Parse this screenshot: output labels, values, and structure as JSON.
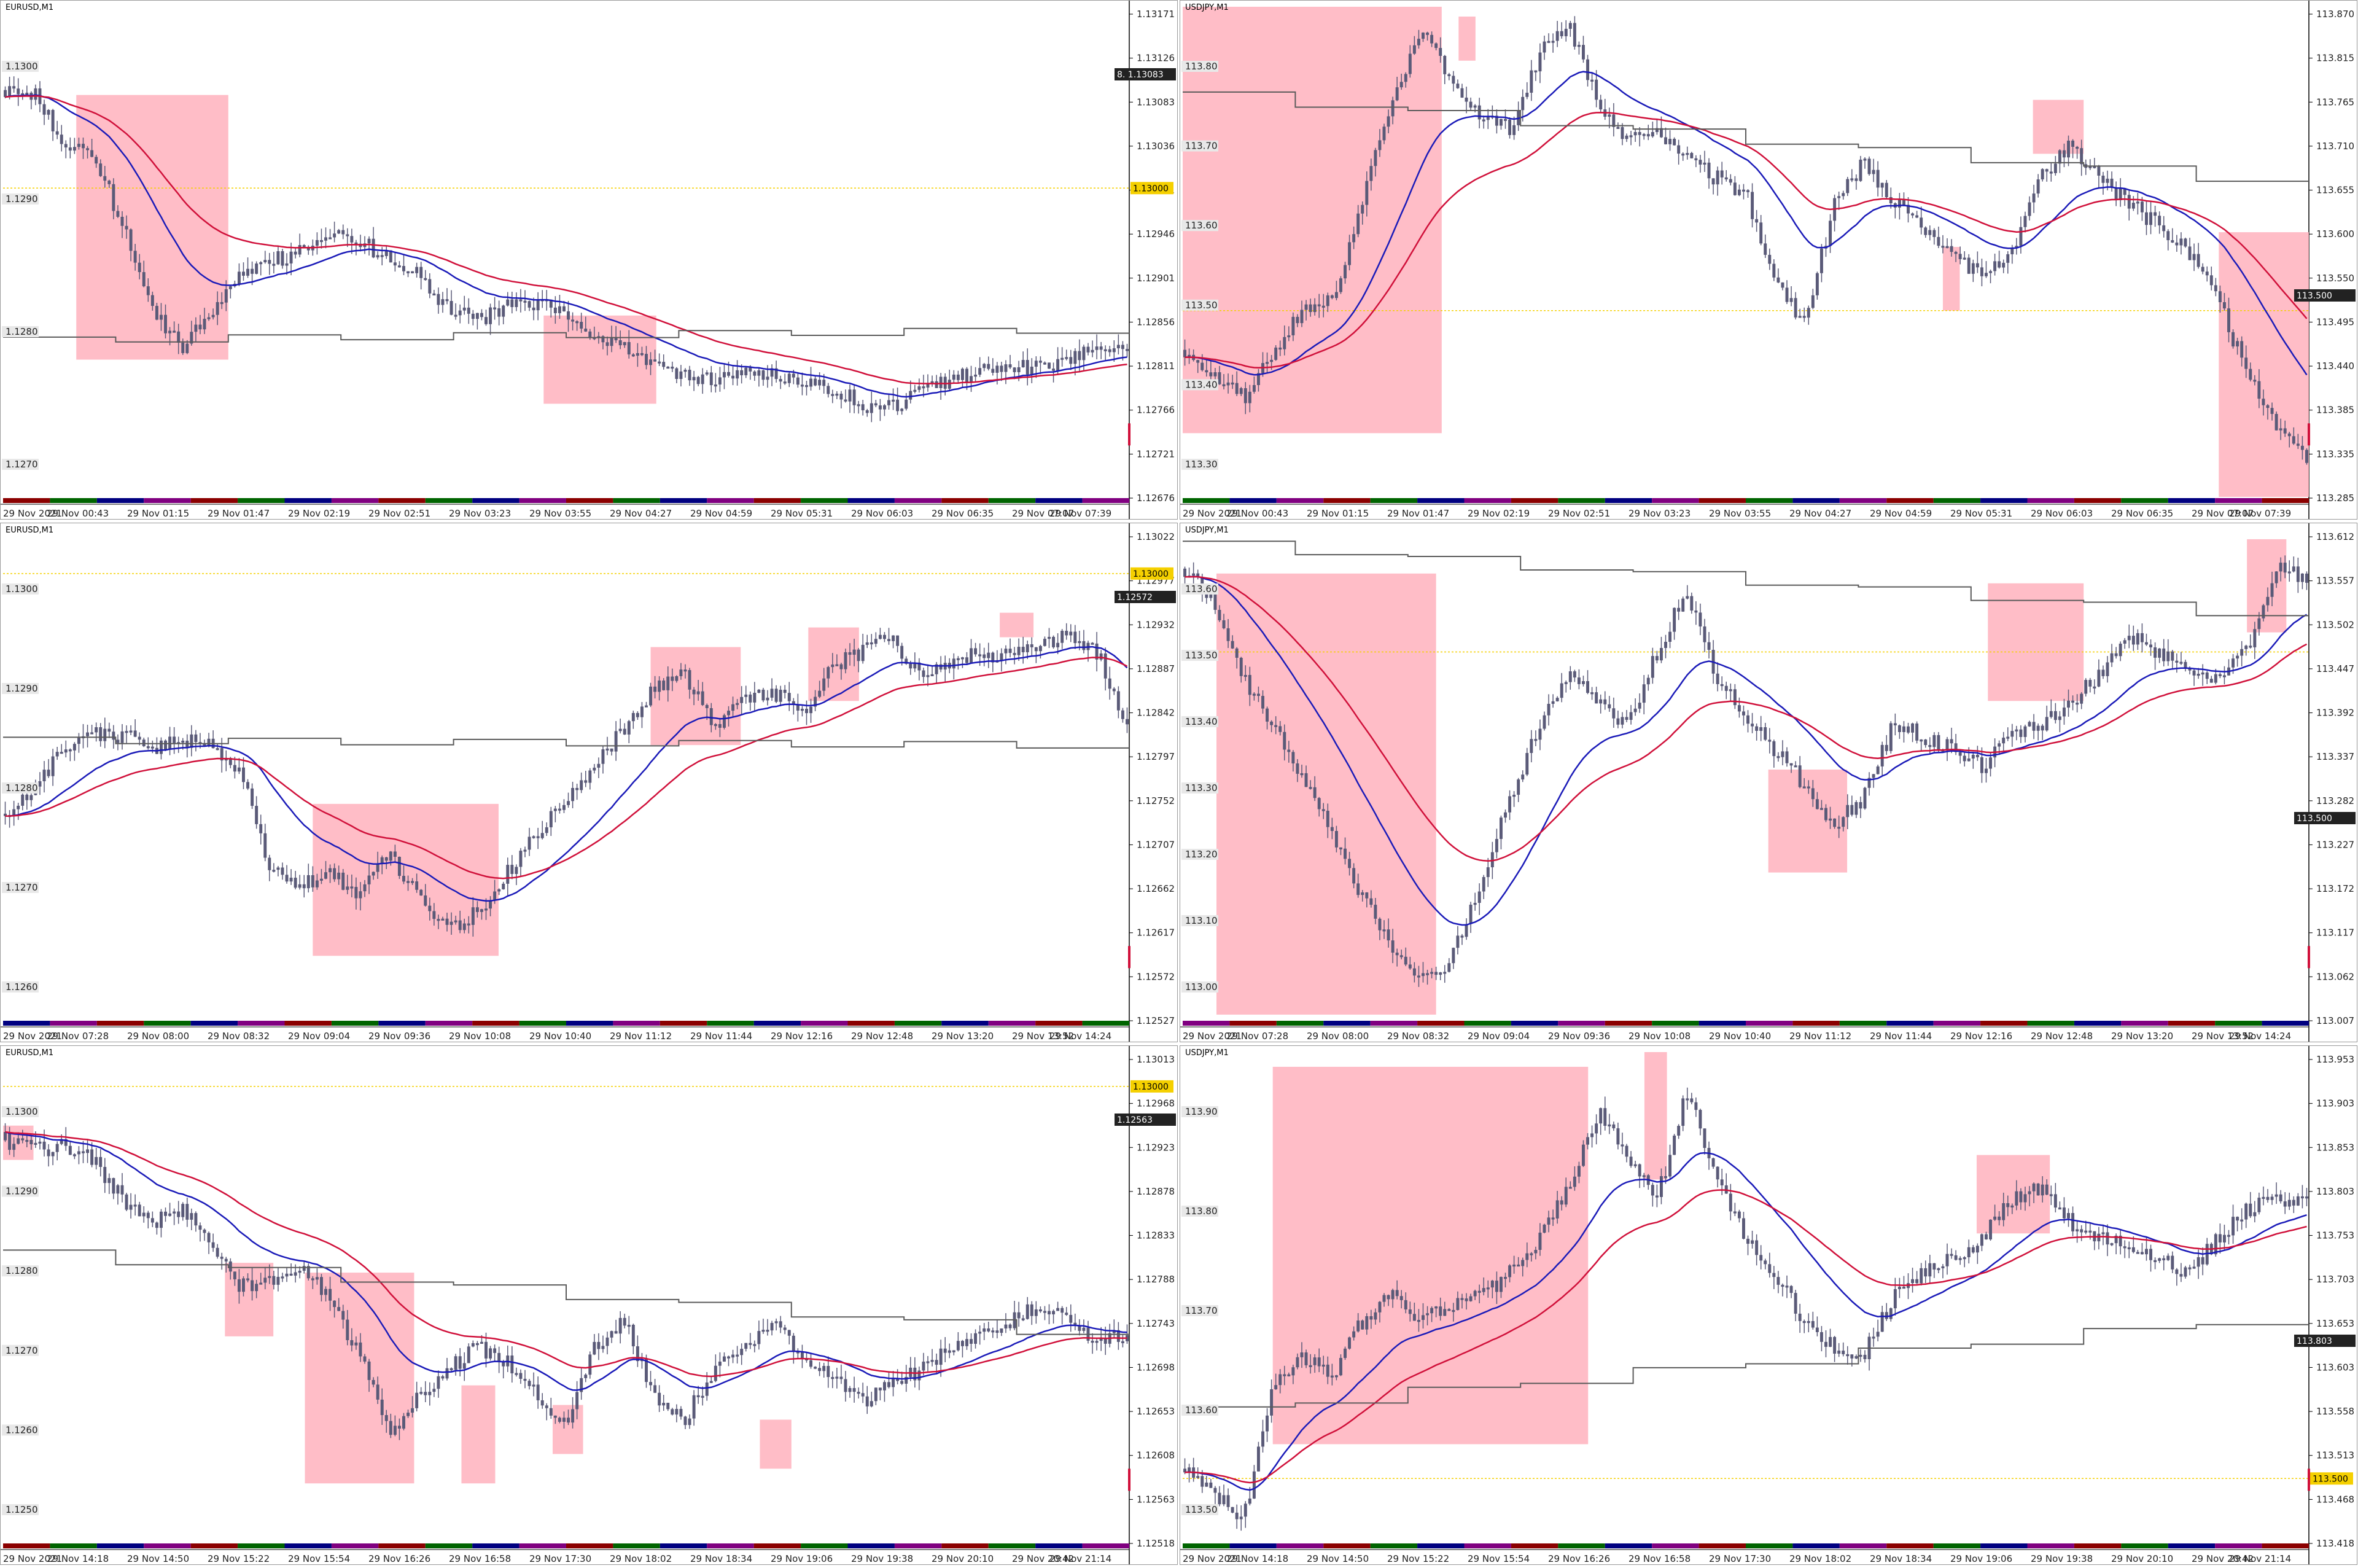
{
  "colors": {
    "ma_fast": "#d0103a",
    "ma_slow": "#1a1ab8",
    "level_line": "#5a5a5a",
    "zone": "#ffb6c1",
    "candle": "#5a5a78",
    "yellow": "#f5d000",
    "session_bars": [
      "#8b0000",
      "#006400",
      "#000080",
      "#800080"
    ]
  },
  "panels": [
    {
      "id": "p1",
      "title": "EURUSD,M1",
      "seed": 11,
      "left_labels": [
        "1.1300",
        "1.1290",
        "1.1280",
        "1.1270"
      ],
      "right_labels": [
        "1.13171",
        "1.13126",
        "1.13083",
        "1.13036",
        "1.12991",
        "1.12946",
        "1.12901",
        "1.12856",
        "1.12811",
        "1.12766",
        "1.12721",
        "1.12676"
      ],
      "time_labels": [
        "29 Nov 2021",
        "29 Nov 00:43",
        "29 Nov 01:15",
        "29 Nov 01:47",
        "29 Nov 02:19",
        "29 Nov 02:51",
        "29 Nov 03:23",
        "29 Nov 03:55",
        "29 Nov 04:27",
        "29 Nov 04:59",
        "29 Nov 05:31",
        "29 Nov 06:03",
        "29 Nov 06:35",
        "29 Nov 07:07",
        "29 Nov 07:39"
      ],
      "price_tag": "1.13083",
      "price_tag_prefix": "8.",
      "yellow_tag": "1.13000",
      "path": [
        0.17,
        0.18,
        0.28,
        0.3,
        0.45,
        0.62,
        0.7,
        0.62,
        0.55,
        0.52,
        0.5,
        0.47,
        0.48,
        0.51,
        0.55,
        0.62,
        0.64,
        0.61,
        0.61,
        0.62,
        0.67,
        0.7,
        0.72,
        0.75,
        0.76,
        0.74,
        0.75,
        0.76,
        0.78,
        0.81,
        0.82,
        0.79,
        0.76,
        0.74,
        0.73,
        0.74,
        0.72,
        0.7,
        0.69
      ],
      "zones": [
        [
          0.065,
          0.2,
          0.18,
          0.72
        ],
        [
          0.48,
          0.58,
          0.63,
          0.81
        ]
      ],
      "yellow_line": 0.37,
      "level": [
        0.68,
        0.66
      ]
    },
    {
      "id": "p2",
      "title": "USDJPY,M1",
      "seed": 23,
      "left_labels": [
        "113.80",
        "113.70",
        "113.60",
        "113.50",
        "113.40",
        "113.30"
      ],
      "right_labels": [
        "113.870",
        "113.815",
        "113.765",
        "113.710",
        "113.655",
        "113.600",
        "113.550",
        "113.495",
        "113.440",
        "113.385",
        "113.335",
        "113.285"
      ],
      "time_labels": [
        "29 Nov 2021",
        "29 Nov 00:43",
        "29 Nov 01:15",
        "29 Nov 01:47",
        "29 Nov 02:19",
        "29 Nov 02:51",
        "29 Nov 03:23",
        "29 Nov 03:55",
        "29 Nov 04:27",
        "29 Nov 04:59",
        "29 Nov 05:31",
        "29 Nov 06:03",
        "29 Nov 06:35",
        "29 Nov 07:07",
        "29 Nov 07:39"
      ],
      "price_tag": "113.500",
      "price_tag_prefix": "",
      "yellow_tag": "",
      "path": [
        0.7,
        0.75,
        0.8,
        0.7,
        0.62,
        0.6,
        0.4,
        0.2,
        0.05,
        0.15,
        0.22,
        0.25,
        0.1,
        0.03,
        0.2,
        0.28,
        0.25,
        0.3,
        0.35,
        0.38,
        0.55,
        0.65,
        0.4,
        0.32,
        0.4,
        0.45,
        0.5,
        0.55,
        0.5,
        0.35,
        0.28,
        0.35,
        0.4,
        0.45,
        0.5,
        0.6,
        0.75,
        0.85,
        0.92
      ],
      "zones": [
        [
          0.0,
          0.23,
          0.0,
          0.87
        ],
        [
          0.245,
          0.26,
          0.02,
          0.11
        ],
        [
          0.675,
          0.69,
          0.49,
          0.62
        ],
        [
          0.755,
          0.8,
          0.19,
          0.3
        ],
        [
          0.92,
          1.0,
          0.46,
          1.0
        ]
      ],
      "yellow_line": 0.62,
      "level": [
        0.18,
        0.35
      ]
    },
    {
      "id": "p3",
      "title": "EURUSD,M1",
      "seed": 37,
      "left_labels": [
        "1.1300",
        "1.1290",
        "1.1280",
        "1.1270",
        "1.1260"
      ],
      "right_labels": [
        "1.13022",
        "1.12977",
        "1.12932",
        "1.12887",
        "1.12842",
        "1.12797",
        "1.12752",
        "1.12707",
        "1.12662",
        "1.12617",
        "1.12572",
        "1.12527"
      ],
      "time_labels": [
        "29 Nov 2021",
        "29 Nov 07:28",
        "29 Nov 08:00",
        "29 Nov 08:32",
        "29 Nov 09:04",
        "29 Nov 09:36",
        "29 Nov 10:08",
        "29 Nov 10:40",
        "29 Nov 11:12",
        "29 Nov 11:44",
        "29 Nov 12:16",
        "29 Nov 12:48",
        "29 Nov 13:20",
        "29 Nov 13:52",
        "29 Nov 14:24"
      ],
      "price_tag": "1.12572",
      "price_tag_prefix": "",
      "yellow_tag": "1.13000",
      "path": [
        0.58,
        0.52,
        0.45,
        0.42,
        0.42,
        0.45,
        0.43,
        0.44,
        0.5,
        0.7,
        0.73,
        0.7,
        0.75,
        0.66,
        0.75,
        0.82,
        0.78,
        0.7,
        0.62,
        0.55,
        0.48,
        0.4,
        0.32,
        0.3,
        0.4,
        0.35,
        0.33,
        0.38,
        0.28,
        0.25,
        0.22,
        0.3,
        0.28,
        0.25,
        0.26,
        0.24,
        0.22,
        0.25,
        0.4
      ],
      "zones": [
        [
          0.275,
          0.44,
          0.56,
          0.87
        ],
        [
          0.575,
          0.655,
          0.24,
          0.44
        ],
        [
          0.715,
          0.76,
          0.2,
          0.35
        ],
        [
          0.885,
          0.915,
          0.17,
          0.22
        ]
      ],
      "yellow_line": 0.09,
      "level": [
        0.43,
        0.44
      ]
    },
    {
      "id": "p4",
      "title": "USDJPY,M1",
      "seed": 41,
      "left_labels": [
        "113.60",
        "113.50",
        "113.40",
        "113.30",
        "113.20",
        "113.10",
        "113.00"
      ],
      "right_labels": [
        "113.612",
        "113.557",
        "113.502",
        "113.447",
        "113.392",
        "113.337",
        "113.282",
        "113.227",
        "113.172",
        "113.117",
        "113.062",
        "113.007"
      ],
      "time_labels": [
        "29 Nov 2021",
        "29 Nov 07:28",
        "29 Nov 08:00",
        "29 Nov 08:32",
        "29 Nov 09:04",
        "29 Nov 09:36",
        "29 Nov 10:08",
        "29 Nov 10:40",
        "29 Nov 11:12",
        "29 Nov 11:44",
        "29 Nov 12:16",
        "29 Nov 12:48",
        "29 Nov 13:20",
        "29 Nov 13:52",
        "29 Nov 14:24"
      ],
      "price_tag": "113.500",
      "price_tag_prefix": "",
      "yellow_tag": "",
      "path": [
        0.08,
        0.15,
        0.3,
        0.4,
        0.5,
        0.62,
        0.75,
        0.85,
        0.92,
        0.88,
        0.72,
        0.55,
        0.4,
        0.3,
        0.35,
        0.4,
        0.25,
        0.12,
        0.3,
        0.38,
        0.45,
        0.52,
        0.6,
        0.55,
        0.4,
        0.42,
        0.45,
        0.48,
        0.42,
        0.4,
        0.35,
        0.3,
        0.22,
        0.25,
        0.28,
        0.3,
        0.25,
        0.08,
        0.1
      ],
      "zones": [
        [
          0.03,
          0.225,
          0.09,
          0.99
        ],
        [
          0.52,
          0.59,
          0.49,
          0.7
        ],
        [
          0.715,
          0.8,
          0.11,
          0.35
        ],
        [
          0.945,
          0.98,
          0.02,
          0.21
        ]
      ],
      "yellow_line": 0.25,
      "level": [
        0.03,
        0.17
      ]
    },
    {
      "id": "p5",
      "title": "EURUSD,M1",
      "seed": 53,
      "left_labels": [
        "1.1300",
        "1.1290",
        "1.1280",
        "1.1270",
        "1.1260",
        "1.1250"
      ],
      "right_labels": [
        "1.13013",
        "1.12968",
        "1.12923",
        "1.12878",
        "1.12833",
        "1.12788",
        "1.12743",
        "1.12698",
        "1.12653",
        "1.12608",
        "1.12563",
        "1.12518"
      ],
      "time_labels": [
        "29 Nov 2021",
        "29 Nov 14:18",
        "29 Nov 14:50",
        "29 Nov 15:22",
        "29 Nov 15:54",
        "29 Nov 16:26",
        "29 Nov 16:58",
        "29 Nov 17:30",
        "29 Nov 18:02",
        "29 Nov 18:34",
        "29 Nov 19:06",
        "29 Nov 19:38",
        "29 Nov 20:10",
        "29 Nov 20:42",
        "29 Nov 21:14"
      ],
      "price_tag": "1.12563",
      "price_tag_prefix": "",
      "yellow_tag": "1.13000",
      "path": [
        0.18,
        0.2,
        0.19,
        0.22,
        0.3,
        0.35,
        0.32,
        0.4,
        0.48,
        0.46,
        0.44,
        0.5,
        0.62,
        0.78,
        0.7,
        0.65,
        0.6,
        0.63,
        0.7,
        0.75,
        0.6,
        0.55,
        0.7,
        0.75,
        0.65,
        0.6,
        0.55,
        0.62,
        0.65,
        0.72,
        0.68,
        0.65,
        0.6,
        0.58,
        0.55,
        0.52,
        0.55,
        0.6,
        0.57
      ],
      "zones": [
        [
          0.0,
          0.027,
          0.15,
          0.22
        ],
        [
          0.197,
          0.24,
          0.43,
          0.58
        ],
        [
          0.268,
          0.365,
          0.45,
          0.88
        ],
        [
          0.407,
          0.437,
          0.68,
          0.88
        ],
        [
          0.488,
          0.515,
          0.72,
          0.82
        ],
        [
          0.672,
          0.7,
          0.75,
          0.85
        ]
      ],
      "yellow_line": 0.07,
      "level": [
        0.41,
        0.57
      ]
    },
    {
      "id": "p6",
      "title": "USDJPY,M1",
      "seed": 67,
      "left_labels": [
        "113.90",
        "113.80",
        "113.70",
        "113.60",
        "113.50"
      ],
      "right_labels": [
        "113.953",
        "113.903",
        "113.853",
        "113.803",
        "113.753",
        "113.703",
        "113.653",
        "113.603",
        "113.558",
        "113.513",
        "113.468",
        "113.418"
      ],
      "time_labels": [
        "29 Nov 2021",
        "29 Nov 14:18",
        "29 Nov 14:50",
        "29 Nov 15:22",
        "29 Nov 15:54",
        "29 Nov 16:26",
        "29 Nov 16:58",
        "29 Nov 17:30",
        "29 Nov 18:02",
        "29 Nov 18:34",
        "29 Nov 19:06",
        "29 Nov 19:38",
        "29 Nov 20:10",
        "29 Nov 20:42",
        "29 Nov 21:14"
      ],
      "price_tag": "113.803",
      "price_tag_prefix": "",
      "yellow_tag": "113.500",
      "path": [
        0.85,
        0.9,
        0.95,
        0.68,
        0.62,
        0.66,
        0.55,
        0.48,
        0.55,
        0.52,
        0.5,
        0.45,
        0.38,
        0.28,
        0.12,
        0.22,
        0.3,
        0.08,
        0.25,
        0.38,
        0.45,
        0.55,
        0.6,
        0.62,
        0.5,
        0.45,
        0.42,
        0.38,
        0.3,
        0.28,
        0.35,
        0.38,
        0.4,
        0.42,
        0.45,
        0.38,
        0.32,
        0.3,
        0.3
      ],
      "zones": [
        [
          0.08,
          0.36,
          0.03,
          0.8
        ],
        [
          0.41,
          0.43,
          0.0,
          0.26
        ],
        [
          0.705,
          0.77,
          0.21,
          0.37
        ]
      ],
      "yellow_line": 0.87,
      "level": [
        0.73,
        0.55
      ]
    }
  ]
}
